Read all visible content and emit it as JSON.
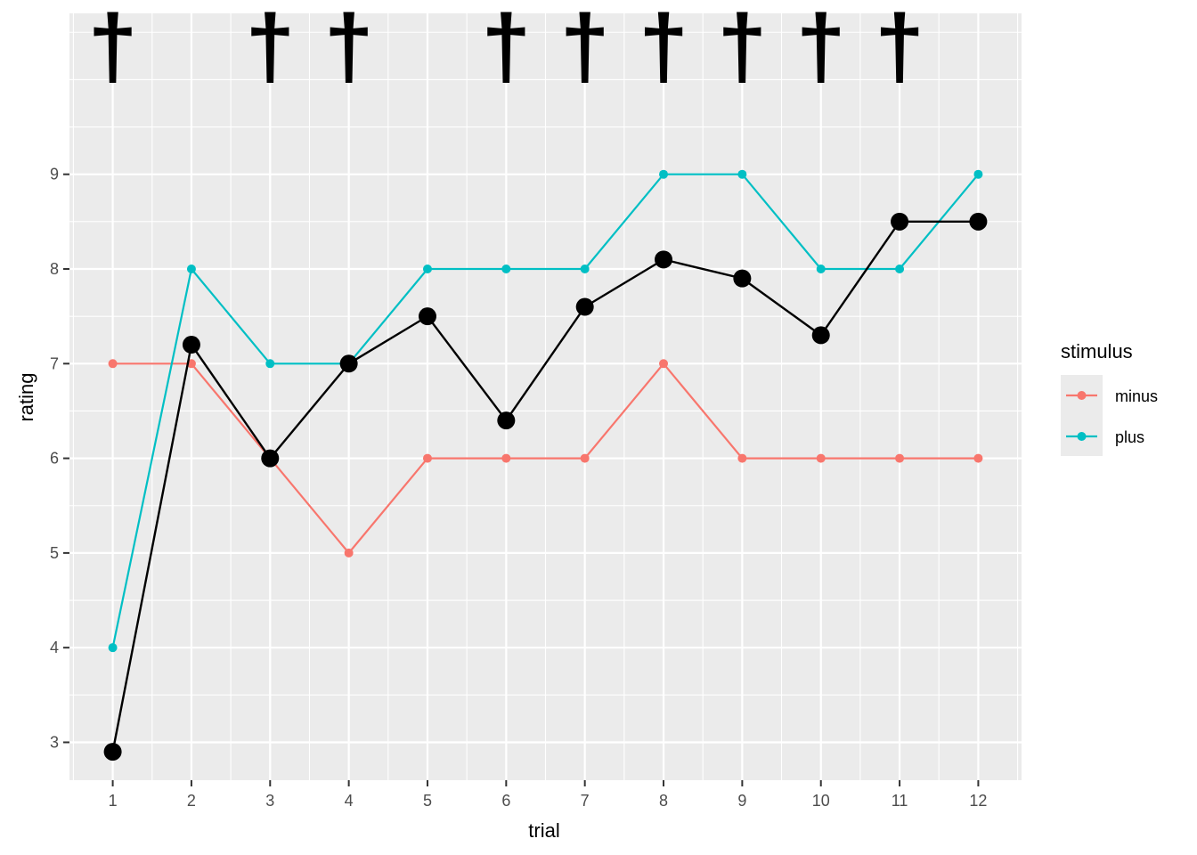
{
  "chart_data": {
    "type": "line",
    "xlabel": "trial",
    "ylabel": "rating",
    "x": [
      1,
      2,
      3,
      4,
      5,
      6,
      7,
      8,
      9,
      10,
      11,
      12
    ],
    "x_tick_labels": [
      "1",
      "2",
      "3",
      "4",
      "5",
      "6",
      "7",
      "8",
      "9",
      "10",
      "11",
      "12"
    ],
    "y_ticks": [
      3,
      4,
      5,
      6,
      7,
      8,
      9
    ],
    "y_tick_labels": [
      "3",
      "4",
      "5",
      "6",
      "7",
      "8",
      "9"
    ],
    "xlim": [
      0.45,
      12.55
    ],
    "ylim": [
      2.6,
      10.7
    ],
    "grid": true,
    "legend": {
      "title": "stimulus",
      "position": "right",
      "entries": [
        "minus",
        "plus"
      ]
    },
    "series": [
      {
        "name": "minus",
        "color": "#F8766D",
        "values": [
          7,
          7,
          6,
          5,
          6,
          6,
          6,
          7,
          6,
          6,
          6,
          6
        ]
      },
      {
        "name": "plus",
        "color": "#00BFC4",
        "values": [
          4,
          8,
          7,
          7,
          8,
          8,
          8,
          9,
          9,
          8,
          8,
          9
        ]
      }
    ],
    "mean_line": {
      "color": "#000000",
      "values": [
        2.9,
        7.2,
        6.0,
        7.0,
        7.5,
        6.4,
        7.6,
        8.1,
        7.9,
        7.3,
        8.5,
        8.5
      ]
    },
    "annotations": {
      "symbol": "†",
      "trials": [
        1,
        3,
        4,
        6,
        7,
        8,
        9,
        10,
        11
      ]
    }
  }
}
